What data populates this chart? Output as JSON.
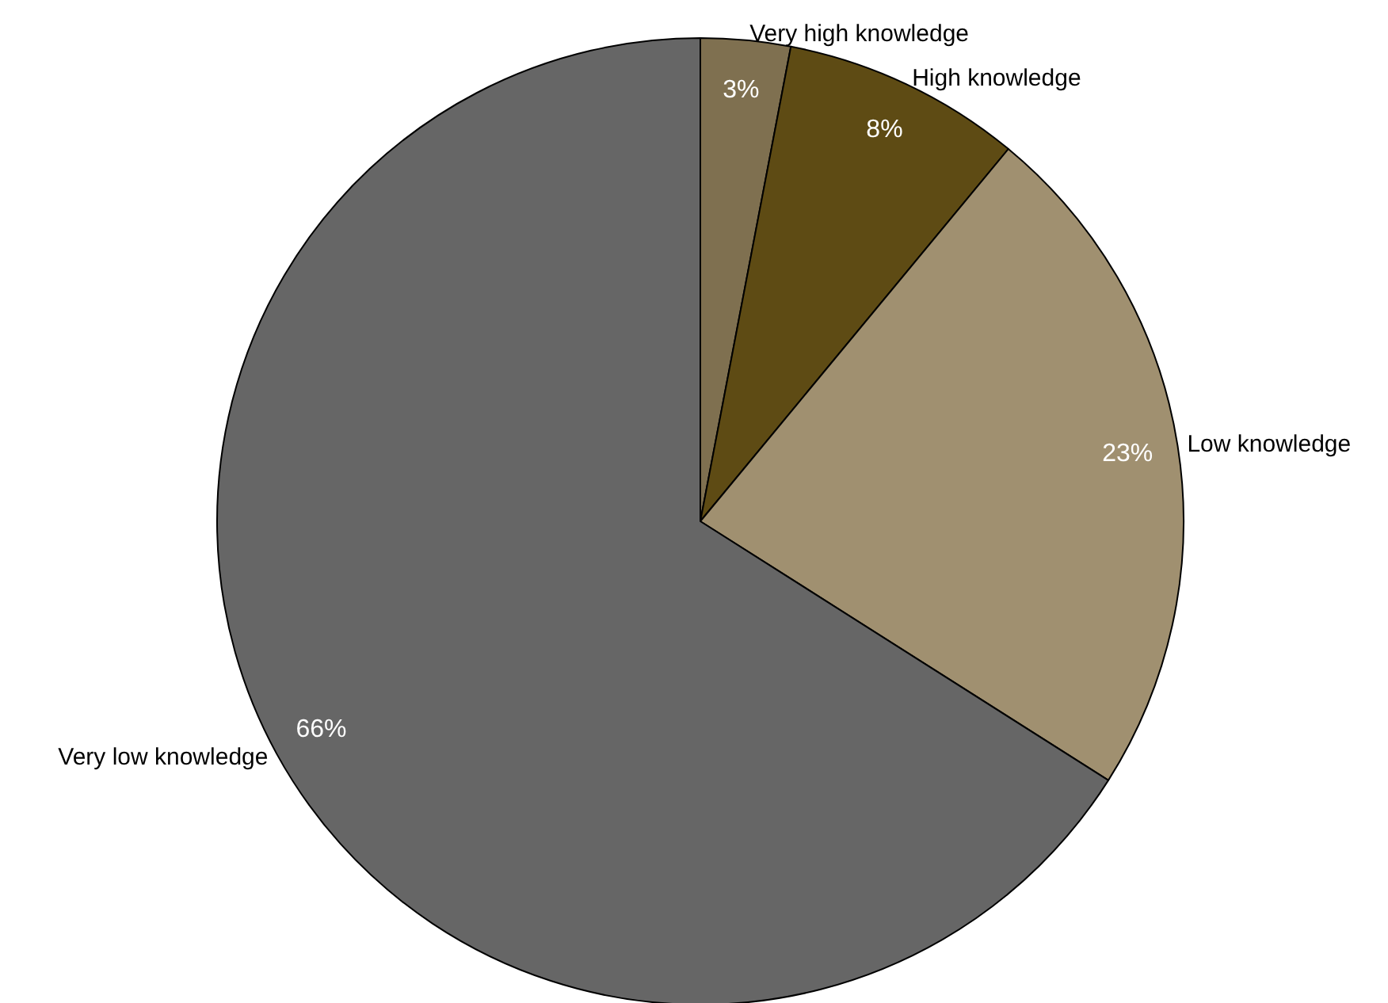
{
  "chart_data": {
    "type": "pie",
    "categories": [
      "Very high knowledge",
      "High knowledge",
      "Low knowledge",
      "Very low knowledge"
    ],
    "values": [
      3,
      8,
      23,
      66
    ],
    "colors": [
      "#7f7050",
      "#5e4b14",
      "#a09070",
      "#666666"
    ],
    "value_labels": [
      "3%",
      "8%",
      "23%",
      "66%"
    ],
    "legend": false
  }
}
